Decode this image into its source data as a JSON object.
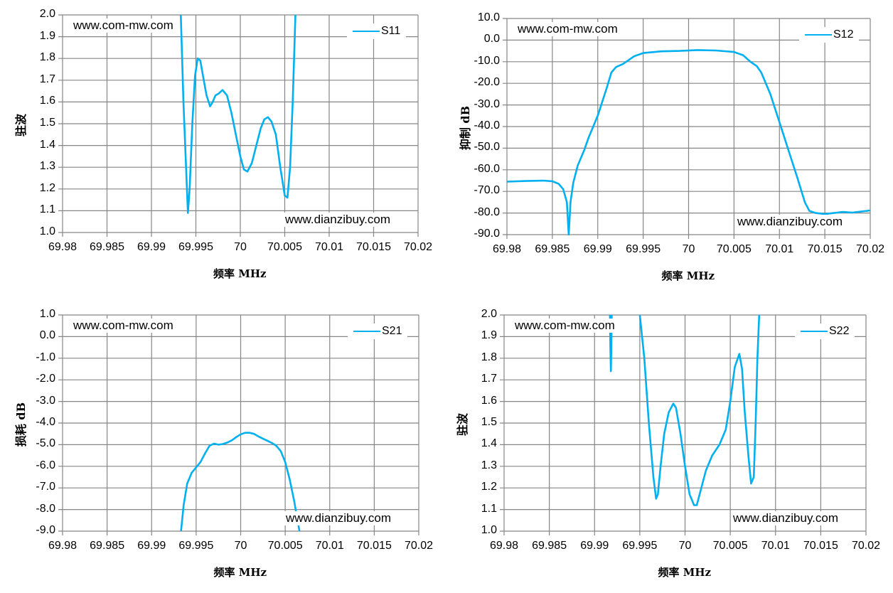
{
  "colors": {
    "series": "#00b0f0",
    "grid": "#868686",
    "background": "#ffffff"
  },
  "watermarks": {
    "top": "www.com-mw.com",
    "bottom": "www.dianzibuy.com"
  },
  "chart_data": [
    {
      "id": "s11",
      "type": "line",
      "title": "",
      "legend": "S11",
      "xlabel": "频率  MHz",
      "ylabel": "驻波",
      "xlim": [
        69.98,
        70.02
      ],
      "ylim": [
        1.0,
        2.0
      ],
      "xticks": [
        "69.98",
        "69.985",
        "69.99",
        "69.995",
        "70",
        "70.005",
        "70.01",
        "70.015",
        "70.02"
      ],
      "yticks": [
        "2.0",
        "1.9",
        "1.8",
        "1.7",
        "1.6",
        "1.5",
        "1.4",
        "1.3",
        "1.2",
        "1.1",
        "1.0"
      ],
      "grid": true,
      "legend_position": "top-right",
      "x": [
        69.9933,
        69.9936,
        69.9939,
        69.9941,
        69.9943,
        69.9946,
        69.9949,
        69.9952,
        69.9955,
        69.9958,
        69.9962,
        69.9966,
        69.9969,
        69.9972,
        69.9976,
        69.998,
        69.9985,
        69.999,
        69.9995,
        70.0,
        70.0004,
        70.0008,
        70.0013,
        70.0018,
        70.0023,
        70.0027,
        70.0031,
        70.0035,
        70.004,
        70.0045,
        70.005,
        70.0053,
        70.0056,
        70.0059,
        70.0062
      ],
      "series": [
        {
          "name": "S11",
          "values": [
            2.0,
            1.6,
            1.3,
            1.09,
            1.2,
            1.5,
            1.72,
            1.8,
            1.79,
            1.72,
            1.63,
            1.58,
            1.6,
            1.63,
            1.64,
            1.655,
            1.63,
            1.55,
            1.45,
            1.35,
            1.29,
            1.28,
            1.32,
            1.4,
            1.48,
            1.52,
            1.53,
            1.51,
            1.45,
            1.3,
            1.17,
            1.16,
            1.3,
            1.6,
            2.0
          ]
        }
      ]
    },
    {
      "id": "s12",
      "type": "line",
      "title": "",
      "legend": "S12",
      "xlabel": "频率  MHz",
      "ylabel": "抑制 dB",
      "xlim": [
        69.98,
        70.02
      ],
      "ylim": [
        -90,
        10
      ],
      "xticks": [
        "69.98",
        "69.985",
        "69.99",
        "69.995",
        "70",
        "70.005",
        "70.01",
        "70.015",
        "70.02"
      ],
      "yticks": [
        "10.0",
        "0.0",
        "-10.0",
        "-20.0",
        "-30.0",
        "-40.0",
        "-50.0",
        "-60.0",
        "-70.0",
        "-80.0",
        "-90.0"
      ],
      "grid": true,
      "legend_position": "top-right",
      "x": [
        69.98,
        69.982,
        69.984,
        69.985,
        69.9857,
        69.9862,
        69.9866,
        69.9868,
        69.987,
        69.9873,
        69.9878,
        69.9885,
        69.989,
        69.99,
        69.991,
        69.9915,
        69.992,
        69.9928,
        69.994,
        69.995,
        69.997,
        69.999,
        70.001,
        70.003,
        70.005,
        70.006,
        70.0068,
        70.0075,
        70.008,
        70.009,
        70.01,
        70.011,
        70.012,
        70.0128,
        70.0133,
        70.014,
        70.015,
        70.016,
        70.017,
        70.018,
        70.019,
        70.02
      ],
      "series": [
        {
          "name": "S12",
          "values": [
            -65.5,
            -65.2,
            -65.0,
            -65.3,
            -66.5,
            -69,
            -75,
            -90,
            -75,
            -66,
            -58,
            -51,
            -45,
            -35,
            -22,
            -15,
            -12.5,
            -11,
            -7.5,
            -6,
            -5.2,
            -5,
            -4.6,
            -4.8,
            -5.5,
            -7,
            -10,
            -12,
            -15,
            -25,
            -38,
            -51,
            -64,
            -75,
            -79,
            -80,
            -80.5,
            -80,
            -79.5,
            -79.8,
            -79.3,
            -78.8
          ]
        }
      ]
    },
    {
      "id": "s21",
      "type": "line",
      "title": "",
      "legend": "S21",
      "xlabel": "频率  MHz",
      "ylabel": "损耗 dB",
      "xlim": [
        69.98,
        70.02
      ],
      "ylim": [
        -9.0,
        1.0
      ],
      "xticks": [
        "69.98",
        "69.985",
        "69.99",
        "69.995",
        "70",
        "70.005",
        "70.01",
        "70.015",
        "70.02"
      ],
      "yticks": [
        "1.0",
        "0.0",
        "-1.0",
        "-2.0",
        "-3.0",
        "-4.0",
        "-5.0",
        "-6.0",
        "-7.0",
        "-8.0",
        "-9.0"
      ],
      "grid": true,
      "legend_position": "top-right",
      "x": [
        69.9933,
        69.9936,
        69.994,
        69.9945,
        69.995,
        69.9955,
        69.996,
        69.9965,
        69.997,
        69.9975,
        69.998,
        69.9985,
        69.999,
        69.9995,
        70.0,
        70.0005,
        70.001,
        70.0015,
        70.002,
        70.0025,
        70.003,
        70.0035,
        70.004,
        70.0045,
        70.005,
        70.0055,
        70.006,
        70.0063,
        70.0066
      ],
      "series": [
        {
          "name": "S21",
          "values": [
            -9.0,
            -7.8,
            -6.8,
            -6.3,
            -6.05,
            -5.8,
            -5.4,
            -5.05,
            -4.95,
            -5.0,
            -4.97,
            -4.9,
            -4.8,
            -4.65,
            -4.52,
            -4.45,
            -4.45,
            -4.5,
            -4.62,
            -4.72,
            -4.82,
            -4.92,
            -5.05,
            -5.3,
            -5.8,
            -6.6,
            -7.6,
            -8.3,
            -9.0
          ]
        }
      ]
    },
    {
      "id": "s22",
      "type": "line",
      "title": "",
      "legend": "S22",
      "xlabel": "频率  MHz",
      "ylabel": "驻波",
      "xlim": [
        69.98,
        70.02
      ],
      "ylim": [
        1.0,
        2.0
      ],
      "xticks": [
        "69.98",
        "69.985",
        "69.99",
        "69.995",
        "70",
        "70.005",
        "70.01",
        "70.015",
        "70.02"
      ],
      "yticks": [
        "2.0",
        "1.9",
        "1.8",
        "1.7",
        "1.6",
        "1.5",
        "1.4",
        "1.3",
        "1.2",
        "1.1",
        "1.0"
      ],
      "grid": true,
      "legend_position": "top-right",
      "segments": [
        {
          "x": [
            69.9917,
            69.99175,
            69.9918,
            69.99185,
            69.9919
          ],
          "values": [
            2.0,
            1.85,
            1.74,
            1.85,
            2.0
          ]
        }
      ],
      "x": [
        69.995,
        69.9955,
        69.996,
        69.9965,
        69.9968,
        69.997,
        69.9973,
        69.9977,
        69.9982,
        69.9987,
        69.999,
        69.9995,
        70.0,
        70.0005,
        70.001,
        70.0013,
        70.0018,
        70.0023,
        70.003,
        70.0038,
        70.0045,
        70.005,
        70.0055,
        70.006,
        70.0063,
        70.0066,
        70.007,
        70.0073,
        70.0076,
        70.0078,
        70.008,
        70.0082
      ],
      "series": [
        {
          "name": "S22",
          "values": [
            2.0,
            1.8,
            1.5,
            1.25,
            1.15,
            1.17,
            1.3,
            1.45,
            1.55,
            1.59,
            1.57,
            1.45,
            1.3,
            1.17,
            1.12,
            1.12,
            1.2,
            1.28,
            1.35,
            1.4,
            1.47,
            1.6,
            1.76,
            1.82,
            1.75,
            1.55,
            1.35,
            1.22,
            1.25,
            1.5,
            1.8,
            2.0
          ]
        }
      ]
    }
  ]
}
